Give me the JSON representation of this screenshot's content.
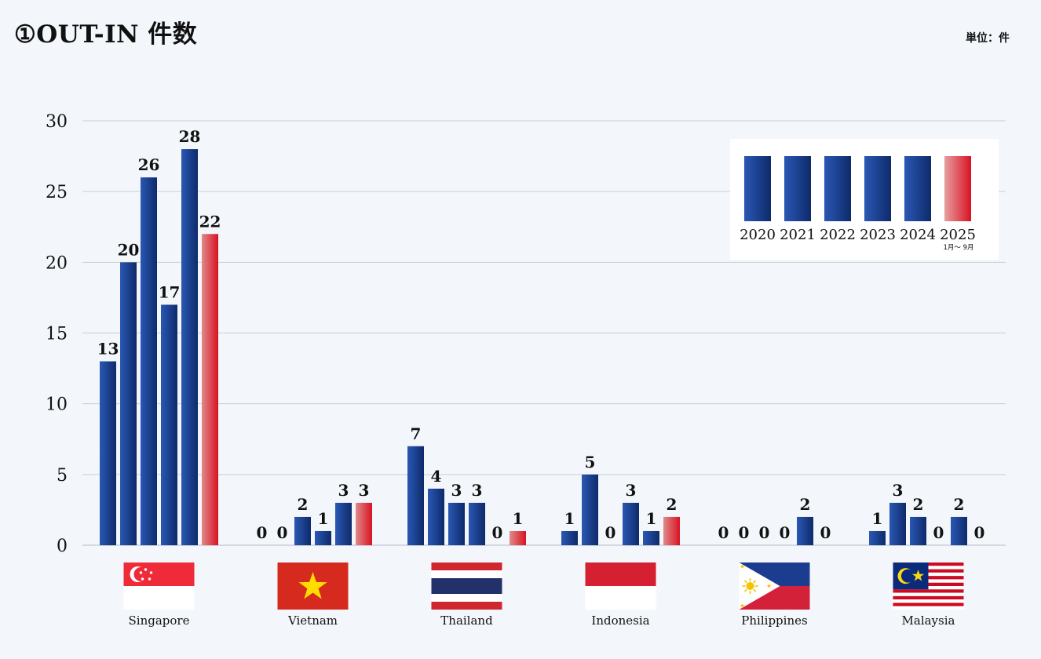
{
  "title": "①OUT-IN 件数",
  "unit_label": "単位：件",
  "colors": {
    "bar_blue_dark": "#0e2a6a",
    "bar_blue_light": "#2a58b4",
    "bar_red_light": "#e08a8a",
    "bar_red_dark": "#d81223",
    "grid": "#c9ced6",
    "background": "#f3f7fb"
  },
  "chart_data": {
    "type": "bar",
    "title": "①OUT-IN 件数",
    "ylabel": "単位：件",
    "ylim": [
      0,
      30
    ],
    "yticks": [
      0,
      5,
      10,
      15,
      20,
      25,
      30
    ],
    "grid": true,
    "legend_position": "top-right",
    "categories": [
      "Singapore",
      "Vietnam",
      "Thailand",
      "Indonesia",
      "Philippines",
      "Malaysia"
    ],
    "series": [
      {
        "name": "2020",
        "values": [
          13,
          0,
          7,
          1,
          0,
          1
        ]
      },
      {
        "name": "2021",
        "values": [
          20,
          0,
          4,
          5,
          0,
          3
        ]
      },
      {
        "name": "2022",
        "values": [
          26,
          2,
          3,
          0,
          0,
          2
        ]
      },
      {
        "name": "2023",
        "values": [
          17,
          1,
          3,
          3,
          0,
          0
        ]
      },
      {
        "name": "2024",
        "values": [
          28,
          3,
          0,
          1,
          2,
          2
        ]
      },
      {
        "name": "2025",
        "values": [
          22,
          3,
          1,
          2,
          0,
          0
        ],
        "note": "1月～ 9月"
      }
    ],
    "flags": [
      "singapore-flag",
      "vietnam-flag",
      "thailand-flag",
      "indonesia-flag",
      "philippines-flag",
      "malaysia-flag"
    ]
  }
}
